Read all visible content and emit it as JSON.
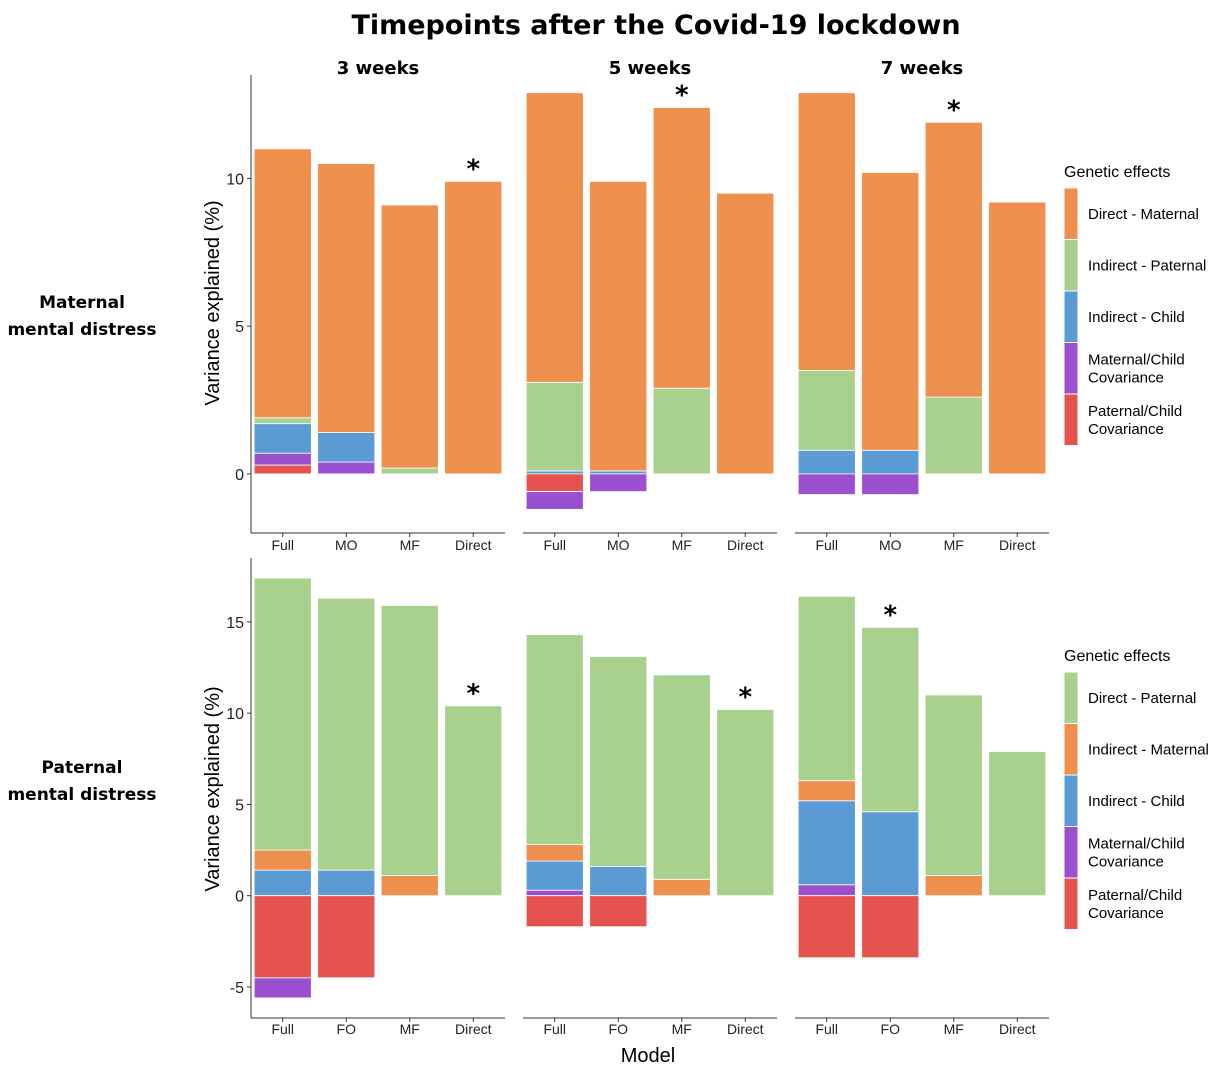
{
  "title": "Timepoints after the Covid-19 lockdown",
  "x_axis_title": "Model",
  "y_axis_title": "Variance explained (%)",
  "colors": {
    "orange": "#EF8F4D",
    "green": "#A9D18E",
    "blue": "#5B9BD5",
    "purple": "#9B51CF",
    "red": "#E5534F"
  },
  "chart_data": [
    {
      "type": "bar",
      "stacked": true,
      "row_label": [
        "Maternal",
        "mental distress"
      ],
      "legend_title": "Genetic effects",
      "legend_position": "right",
      "legend": [
        {
          "label": [
            "Direct - Maternal"
          ],
          "color": "orange"
        },
        {
          "label": [
            "Indirect - Paternal"
          ],
          "color": "green"
        },
        {
          "label": [
            "Indirect - Child"
          ],
          "color": "blue"
        },
        {
          "label": [
            "Maternal/Child",
            "Covariance"
          ],
          "color": "purple"
        },
        {
          "label": [
            "Paternal/Child",
            "Covariance"
          ],
          "color": "red"
        }
      ],
      "ylim": [
        -2,
        13.5
      ],
      "yticks": [
        0,
        5,
        10
      ],
      "ytick_labels": [
        "0",
        "5",
        "10"
      ],
      "panels": [
        {
          "title": "3 weeks",
          "categories": [
            "Full",
            "MO",
            "MF",
            "Direct"
          ],
          "star_index": 3,
          "bars": [
            [
              {
                "color": "red",
                "from": 0,
                "to": 0.3
              },
              {
                "color": "purple",
                "from": 0.3,
                "to": 0.7
              },
              {
                "color": "blue",
                "from": 0.7,
                "to": 1.7
              },
              {
                "color": "green",
                "from": 1.7,
                "to": 1.9
              },
              {
                "color": "orange",
                "from": 1.9,
                "to": 11.0
              }
            ],
            [
              {
                "color": "purple",
                "from": 0,
                "to": 0.4
              },
              {
                "color": "blue",
                "from": 0.4,
                "to": 1.4
              },
              {
                "color": "orange",
                "from": 1.4,
                "to": 10.5
              }
            ],
            [
              {
                "color": "green",
                "from": 0,
                "to": 0.2
              },
              {
                "color": "orange",
                "from": 0.2,
                "to": 9.1
              }
            ],
            [
              {
                "color": "orange",
                "from": 0,
                "to": 9.9
              }
            ]
          ]
        },
        {
          "title": "5 weeks",
          "categories": [
            "Full",
            "MO",
            "MF",
            "Direct"
          ],
          "star_index": 2,
          "bars": [
            [
              {
                "color": "blue",
                "from": 0,
                "to": 0.1
              },
              {
                "color": "green",
                "from": 0.1,
                "to": 3.1
              },
              {
                "color": "orange",
                "from": 3.1,
                "to": 12.9
              },
              {
                "color": "red",
                "from": -0.6,
                "to": 0
              },
              {
                "color": "purple",
                "from": -1.2,
                "to": -0.6
              }
            ],
            [
              {
                "color": "blue",
                "from": 0,
                "to": 0.1
              },
              {
                "color": "orange",
                "from": 0.1,
                "to": 9.9
              },
              {
                "color": "purple",
                "from": -0.6,
                "to": 0
              }
            ],
            [
              {
                "color": "green",
                "from": 0,
                "to": 2.9
              },
              {
                "color": "orange",
                "from": 2.9,
                "to": 12.4
              }
            ],
            [
              {
                "color": "orange",
                "from": 0,
                "to": 9.5
              }
            ]
          ]
        },
        {
          "title": "7 weeks",
          "categories": [
            "Full",
            "MO",
            "MF",
            "Direct"
          ],
          "star_index": 2,
          "bars": [
            [
              {
                "color": "blue",
                "from": 0,
                "to": 0.8
              },
              {
                "color": "green",
                "from": 0.8,
                "to": 3.5
              },
              {
                "color": "orange",
                "from": 3.5,
                "to": 12.9
              },
              {
                "color": "purple",
                "from": -0.7,
                "to": 0
              }
            ],
            [
              {
                "color": "blue",
                "from": 0,
                "to": 0.8
              },
              {
                "color": "orange",
                "from": 0.8,
                "to": 10.2
              },
              {
                "color": "purple",
                "from": -0.7,
                "to": 0
              }
            ],
            [
              {
                "color": "green",
                "from": 0,
                "to": 2.6
              },
              {
                "color": "orange",
                "from": 2.6,
                "to": 11.9
              }
            ],
            [
              {
                "color": "orange",
                "from": 0,
                "to": 9.2
              }
            ]
          ]
        }
      ]
    },
    {
      "type": "bar",
      "stacked": true,
      "row_label": [
        "Paternal",
        "mental distress"
      ],
      "legend_title": "Genetic effects",
      "legend_position": "right",
      "legend": [
        {
          "label": [
            "Direct - Paternal"
          ],
          "color": "green"
        },
        {
          "label": [
            "Indirect - Maternal"
          ],
          "color": "orange"
        },
        {
          "label": [
            "Indirect - Child"
          ],
          "color": "blue"
        },
        {
          "label": [
            "Maternal/Child",
            "Covariance"
          ],
          "color": "purple"
        },
        {
          "label": [
            "Paternal/Child",
            "Covariance"
          ],
          "color": "red"
        }
      ],
      "ylim": [
        -6.7,
        18.5
      ],
      "yticks": [
        -5,
        0,
        5,
        10,
        15
      ],
      "ytick_labels": [
        "-5",
        "0",
        "5",
        "10",
        "15"
      ],
      "panels": [
        {
          "title": "",
          "categories": [
            "Full",
            "FO",
            "MF",
            "Direct"
          ],
          "star_index": 3,
          "bars": [
            [
              {
                "color": "blue",
                "from": 0,
                "to": 1.4
              },
              {
                "color": "orange",
                "from": 1.4,
                "to": 2.5
              },
              {
                "color": "green",
                "from": 2.5,
                "to": 17.4
              },
              {
                "color": "red",
                "from": -4.5,
                "to": 0
              },
              {
                "color": "purple",
                "from": -5.6,
                "to": -4.5
              }
            ],
            [
              {
                "color": "blue",
                "from": 0,
                "to": 1.4
              },
              {
                "color": "green",
                "from": 1.4,
                "to": 16.3
              },
              {
                "color": "red",
                "from": -4.5,
                "to": 0
              }
            ],
            [
              {
                "color": "orange",
                "from": 0,
                "to": 1.1
              },
              {
                "color": "green",
                "from": 1.1,
                "to": 15.9
              }
            ],
            [
              {
                "color": "green",
                "from": 0,
                "to": 10.4
              }
            ]
          ]
        },
        {
          "title": "",
          "categories": [
            "Full",
            "FO",
            "MF",
            "Direct"
          ],
          "star_index": 3,
          "bars": [
            [
              {
                "color": "purple",
                "from": 0,
                "to": 0.3
              },
              {
                "color": "blue",
                "from": 0.3,
                "to": 1.9
              },
              {
                "color": "orange",
                "from": 1.9,
                "to": 2.8
              },
              {
                "color": "green",
                "from": 2.8,
                "to": 14.3
              },
              {
                "color": "red",
                "from": -1.7,
                "to": 0
              }
            ],
            [
              {
                "color": "blue",
                "from": 0,
                "to": 1.6
              },
              {
                "color": "green",
                "from": 1.6,
                "to": 13.1
              },
              {
                "color": "red",
                "from": -1.7,
                "to": 0
              }
            ],
            [
              {
                "color": "orange",
                "from": 0,
                "to": 0.9
              },
              {
                "color": "green",
                "from": 0.9,
                "to": 12.1
              }
            ],
            [
              {
                "color": "green",
                "from": 0,
                "to": 10.2
              }
            ]
          ]
        },
        {
          "title": "",
          "categories": [
            "Full",
            "FO",
            "MF",
            "Direct"
          ],
          "star_index": 1,
          "bars": [
            [
              {
                "color": "purple",
                "from": 0,
                "to": 0.6
              },
              {
                "color": "blue",
                "from": 0.6,
                "to": 5.2
              },
              {
                "color": "orange",
                "from": 5.2,
                "to": 6.3
              },
              {
                "color": "green",
                "from": 6.3,
                "to": 16.4
              },
              {
                "color": "red",
                "from": -3.4,
                "to": 0
              }
            ],
            [
              {
                "color": "blue",
                "from": 0,
                "to": 4.6
              },
              {
                "color": "green",
                "from": 4.6,
                "to": 14.7
              },
              {
                "color": "red",
                "from": -3.4,
                "to": 0
              }
            ],
            [
              {
                "color": "orange",
                "from": 0,
                "to": 1.1
              },
              {
                "color": "green",
                "from": 1.1,
                "to": 11.0
              }
            ],
            [
              {
                "color": "green",
                "from": 0,
                "to": 7.9
              }
            ]
          ]
        }
      ]
    }
  ]
}
